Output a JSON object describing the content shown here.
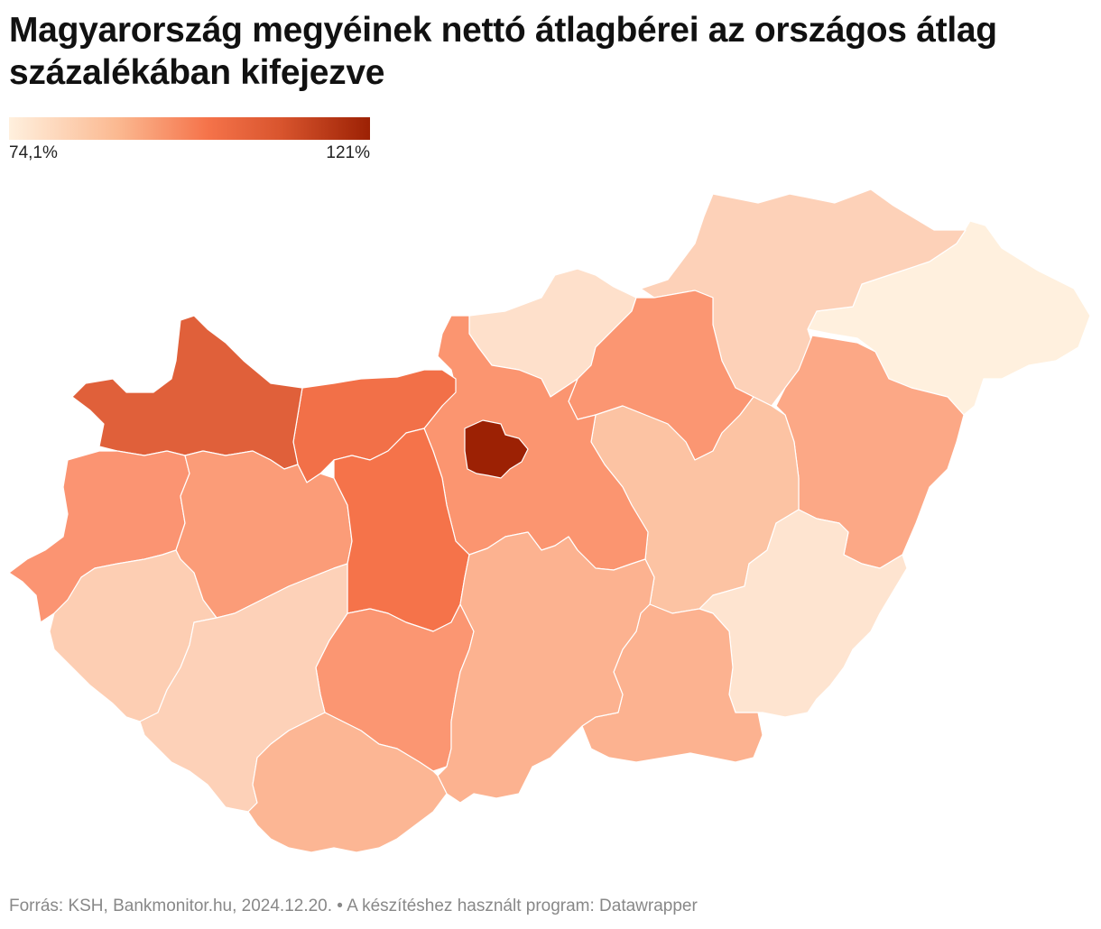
{
  "title": "Magyarország megyéinek nettó átlagbérei az országos átlag százalékában kifejezve",
  "legend": {
    "min_label": "74,1%",
    "max_label": "121%",
    "min_value": 74.1,
    "max_value": 121,
    "colors": [
      "#fff0de",
      "#fbb991",
      "#f5734a",
      "#d9552e",
      "#9c2104"
    ]
  },
  "map": {
    "regions": [
      {
        "id": "budapest",
        "color": "#9c2104"
      },
      {
        "id": "gyor-moson-sopron",
        "color": "#e0603a"
      },
      {
        "id": "komarom-esztergom",
        "color": "#f27048"
      },
      {
        "id": "fejer",
        "color": "#f5734a"
      },
      {
        "id": "pest",
        "color": "#fb9570"
      },
      {
        "id": "vas",
        "color": "#fb9472"
      },
      {
        "id": "veszprem",
        "color": "#fb9c78"
      },
      {
        "id": "heves",
        "color": "#fb9672"
      },
      {
        "id": "hajdu-bihar",
        "color": "#fca886"
      },
      {
        "id": "tolna",
        "color": "#fb9672"
      },
      {
        "id": "bacs-kiskun",
        "color": "#fcb290"
      },
      {
        "id": "csongrad-csanad",
        "color": "#fcb290"
      },
      {
        "id": "jasz-nagykun-szolnok",
        "color": "#fcc3a3"
      },
      {
        "id": "baranya",
        "color": "#fcb694"
      },
      {
        "id": "zala",
        "color": "#fdceb3"
      },
      {
        "id": "somogy",
        "color": "#fdd1b8"
      },
      {
        "id": "borsod-abauj-zemplen",
        "color": "#fdd1b8"
      },
      {
        "id": "nograd",
        "color": "#fee0cb"
      },
      {
        "id": "bekes",
        "color": "#fee4d0"
      },
      {
        "id": "szabolcs-szatmar-bereg",
        "color": "#fff0de"
      }
    ]
  },
  "source": "Forrás: KSH, Bankmonitor.hu, 2024.12.20. • A készítéshez használt program: Datawrapper"
}
